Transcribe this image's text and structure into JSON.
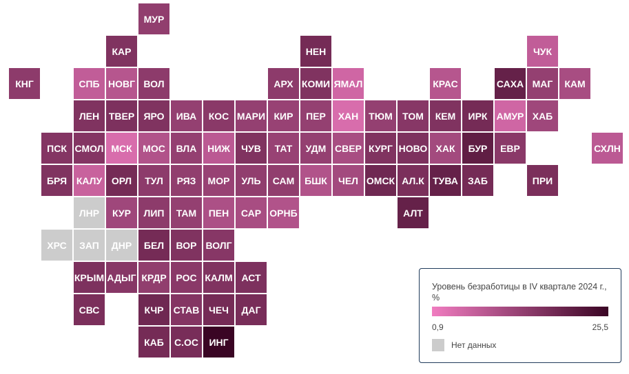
{
  "colors": {
    "low": "#f07cc0",
    "high": "#3a0524",
    "nodata": "#cccccc"
  },
  "legend": {
    "title": "Уровень безработицы в IV квартале 2024 г., %",
    "min_label": "0,9",
    "max_label": "25,5",
    "nodata_label": "Нет данных",
    "min": 0.9,
    "max": 25.5
  },
  "regions": [
    {
      "label": "МУР",
      "row": 0,
      "col": 4,
      "value": 8.5
    },
    {
      "label": "КАР",
      "row": 1,
      "col": 3,
      "value": 11.0
    },
    {
      "label": "НЕН",
      "row": 1,
      "col": 9,
      "value": 13.0
    },
    {
      "label": "ЧУК",
      "row": 1,
      "col": 16,
      "value": 3.0
    },
    {
      "label": "КНГ",
      "row": 2,
      "col": 0,
      "value": 9.0
    },
    {
      "label": "СПБ",
      "row": 2,
      "col": 2,
      "value": 3.0
    },
    {
      "label": "НОВГ",
      "row": 2,
      "col": 3,
      "value": 4.0
    },
    {
      "label": "ВОЛ",
      "row": 2,
      "col": 4,
      "value": 9.0
    },
    {
      "label": "АРХ",
      "row": 2,
      "col": 8,
      "value": 9.0
    },
    {
      "label": "КОМИ",
      "row": 2,
      "col": 9,
      "value": 11.0
    },
    {
      "label": "ЯМАЛ",
      "row": 2,
      "col": 10,
      "value": 2.0
    },
    {
      "label": "КРАС",
      "row": 2,
      "col": 13,
      "value": 4.0
    },
    {
      "label": "САХА",
      "row": 2,
      "col": 15,
      "value": 16.0
    },
    {
      "label": "МАГ",
      "row": 2,
      "col": 16,
      "value": 8.0
    },
    {
      "label": "КАМ",
      "row": 2,
      "col": 17,
      "value": 5.5
    },
    {
      "label": "ЛЕН",
      "row": 3,
      "col": 2,
      "value": 11.0
    },
    {
      "label": "ТВЕР",
      "row": 3,
      "col": 3,
      "value": 11.5
    },
    {
      "label": "ЯРО",
      "row": 3,
      "col": 4,
      "value": 11.0
    },
    {
      "label": "ИВА",
      "row": 3,
      "col": 5,
      "value": 8.0
    },
    {
      "label": "КОС",
      "row": 3,
      "col": 6,
      "value": 9.5
    },
    {
      "label": "МАРИ",
      "row": 3,
      "col": 7,
      "value": 8.0
    },
    {
      "label": "КИР",
      "row": 3,
      "col": 8,
      "value": 7.5
    },
    {
      "label": "ПЕР",
      "row": 3,
      "col": 9,
      "value": 8.0
    },
    {
      "label": "ХАН",
      "row": 3,
      "col": 10,
      "value": 1.5
    },
    {
      "label": "ТЮМ",
      "row": 3,
      "col": 11,
      "value": 8.0
    },
    {
      "label": "ТОМ",
      "row": 3,
      "col": 12,
      "value": 10.0
    },
    {
      "label": "КЕМ",
      "row": 3,
      "col": 13,
      "value": 11.0
    },
    {
      "label": "ИРК",
      "row": 3,
      "col": 14,
      "value": 13.0
    },
    {
      "label": "АМУР",
      "row": 3,
      "col": 15,
      "value": 2.0
    },
    {
      "label": "ХАБ",
      "row": 3,
      "col": 16,
      "value": 6.5
    },
    {
      "label": "ПСК",
      "row": 4,
      "col": 1,
      "value": 10.5
    },
    {
      "label": "СМОЛ",
      "row": 4,
      "col": 2,
      "value": 10.5
    },
    {
      "label": "МСК",
      "row": 4,
      "col": 3,
      "value": 1.5
    },
    {
      "label": "МОС",
      "row": 4,
      "col": 4,
      "value": 4.5
    },
    {
      "label": "ВЛА",
      "row": 4,
      "col": 5,
      "value": 8.0
    },
    {
      "label": "НИЖ",
      "row": 4,
      "col": 6,
      "value": 3.5
    },
    {
      "label": "ЧУВ",
      "row": 4,
      "col": 7,
      "value": 11.0
    },
    {
      "label": "ТАТ",
      "row": 4,
      "col": 8,
      "value": 7.5
    },
    {
      "label": "УДМ",
      "row": 4,
      "col": 9,
      "value": 8.0
    },
    {
      "label": "СВЕР",
      "row": 4,
      "col": 10,
      "value": 5.5
    },
    {
      "label": "КУРГ",
      "row": 4,
      "col": 11,
      "value": 11.0
    },
    {
      "label": "НОВО",
      "row": 4,
      "col": 12,
      "value": 11.5
    },
    {
      "label": "ХАК",
      "row": 4,
      "col": 13,
      "value": 6.0
    },
    {
      "label": "БУР",
      "row": 4,
      "col": 14,
      "value": 17.0
    },
    {
      "label": "ЕВР",
      "row": 4,
      "col": 15,
      "value": 9.5
    },
    {
      "label": "СХЛН",
      "row": 4,
      "col": 18,
      "value": 3.5
    },
    {
      "label": "БРЯ",
      "row": 5,
      "col": 1,
      "value": 11.0
    },
    {
      "label": "КАЛУ",
      "row": 5,
      "col": 2,
      "value": 2.5
    },
    {
      "label": "ОРЛ",
      "row": 5,
      "col": 3,
      "value": 13.0
    },
    {
      "label": "ТУЛ",
      "row": 5,
      "col": 4,
      "value": 9.0
    },
    {
      "label": "РЯЗ",
      "row": 5,
      "col": 5,
      "value": 8.5
    },
    {
      "label": "МОР",
      "row": 5,
      "col": 6,
      "value": 7.5
    },
    {
      "label": "УЛЬ",
      "row": 5,
      "col": 7,
      "value": 8.5
    },
    {
      "label": "САМ",
      "row": 5,
      "col": 8,
      "value": 8.5
    },
    {
      "label": "БШК",
      "row": 5,
      "col": 9,
      "value": 4.5
    },
    {
      "label": "ЧЕЛ",
      "row": 5,
      "col": 10,
      "value": 6.0
    },
    {
      "label": "ОМСК",
      "row": 5,
      "col": 11,
      "value": 14.0
    },
    {
      "label": "АЛ.К",
      "row": 5,
      "col": 12,
      "value": 12.0
    },
    {
      "label": "ТУВА",
      "row": 5,
      "col": 13,
      "value": 16.0
    },
    {
      "label": "ЗАБ",
      "row": 5,
      "col": 14,
      "value": 13.0
    },
    {
      "label": "ПРИ",
      "row": 5,
      "col": 16,
      "value": 12.0
    },
    {
      "label": "ЛНР",
      "row": 6,
      "col": 2,
      "value": null
    },
    {
      "label": "КУР",
      "row": 6,
      "col": 3,
      "value": 6.5
    },
    {
      "label": "ЛИП",
      "row": 6,
      "col": 4,
      "value": 9.0
    },
    {
      "label": "ТАМ",
      "row": 6,
      "col": 5,
      "value": 8.0
    },
    {
      "label": "ПЕН",
      "row": 6,
      "col": 6,
      "value": 5.0
    },
    {
      "label": "САР",
      "row": 6,
      "col": 7,
      "value": 5.5
    },
    {
      "label": "ОРНБ",
      "row": 6,
      "col": 8,
      "value": 4.5
    },
    {
      "label": "АЛТ",
      "row": 6,
      "col": 12,
      "value": 16.0
    },
    {
      "label": "ХРС",
      "row": 7,
      "col": 1,
      "value": null
    },
    {
      "label": "ЗАП",
      "row": 7,
      "col": 2,
      "value": null
    },
    {
      "label": "ДНР",
      "row": 7,
      "col": 3,
      "value": null
    },
    {
      "label": "БЕЛ",
      "row": 7,
      "col": 4,
      "value": 13.0
    },
    {
      "label": "ВОР",
      "row": 7,
      "col": 5,
      "value": 11.0
    },
    {
      "label": "ВОЛГ",
      "row": 7,
      "col": 6,
      "value": 10.0
    },
    {
      "label": "КРЫМ",
      "row": 8,
      "col": 2,
      "value": 11.5
    },
    {
      "label": "АДЫГ",
      "row": 8,
      "col": 3,
      "value": 10.0
    },
    {
      "label": "КРДР",
      "row": 8,
      "col": 4,
      "value": 8.5
    },
    {
      "label": "РОС",
      "row": 8,
      "col": 5,
      "value": 9.5
    },
    {
      "label": "КАЛМ",
      "row": 8,
      "col": 6,
      "value": 11.0
    },
    {
      "label": "АСТ",
      "row": 8,
      "col": 7,
      "value": 11.5
    },
    {
      "label": "СВС",
      "row": 9,
      "col": 2,
      "value": 12.0
    },
    {
      "label": "КЧР",
      "row": 9,
      "col": 4,
      "value": 14.0
    },
    {
      "label": "СТАВ",
      "row": 9,
      "col": 5,
      "value": 10.5
    },
    {
      "label": "ЧЕЧ",
      "row": 9,
      "col": 6,
      "value": 13.0
    },
    {
      "label": "ДАГ",
      "row": 9,
      "col": 7,
      "value": 12.5
    },
    {
      "label": "КАБ",
      "row": 10,
      "col": 4,
      "value": 13.0
    },
    {
      "label": "С.ОС",
      "row": 10,
      "col": 5,
      "value": 12.5
    },
    {
      "label": "ИНГ",
      "row": 10,
      "col": 6,
      "value": 25.5
    }
  ]
}
